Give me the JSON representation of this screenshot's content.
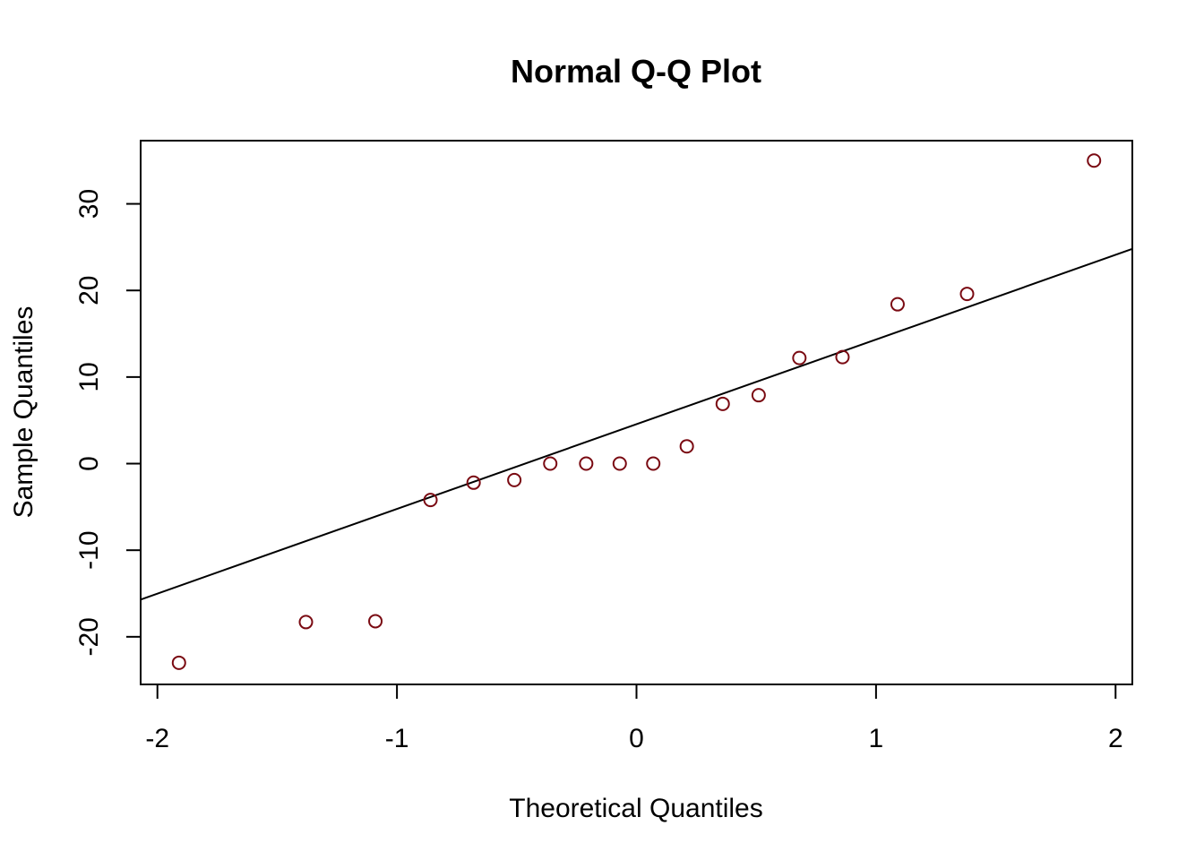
{
  "chart_data": {
    "type": "scatter",
    "title": "Normal Q-Q Plot",
    "xlabel": "Theoretical Quantiles",
    "ylabel": "Sample Quantiles",
    "xlim": [
      -2.07,
      2.07
    ],
    "ylim": [
      -25.5,
      37.3
    ],
    "x_ticks": [
      -2,
      -1,
      0,
      1,
      2
    ],
    "x_tick_labels": [
      "-2",
      "-1",
      "0",
      "1",
      "2"
    ],
    "y_ticks": [
      -20,
      -10,
      0,
      10,
      20,
      30
    ],
    "y_tick_labels": [
      "-20",
      "-10",
      "0",
      "10",
      "20",
      "30"
    ],
    "grid": false,
    "point_color": "#7a0a12",
    "line_color": "#000000",
    "series": [
      {
        "x": [
          -1.91,
          -1.38,
          -1.09,
          -0.86,
          -0.68,
          -0.51,
          -0.36,
          -0.21,
          -0.07,
          0.07,
          0.21,
          0.36,
          0.51,
          0.68,
          0.86,
          1.09,
          1.38,
          1.91
        ],
        "y": [
          -23.0,
          -18.3,
          -18.2,
          -4.2,
          -2.2,
          -1.9,
          0.0,
          0.0,
          0.0,
          0.0,
          2.0,
          6.9,
          7.9,
          12.2,
          12.3,
          18.4,
          19.6,
          35.0
        ]
      }
    ],
    "reference_line": {
      "x": [
        -2.07,
        2.07
      ],
      "y": [
        -15.7,
        24.8
      ]
    }
  }
}
